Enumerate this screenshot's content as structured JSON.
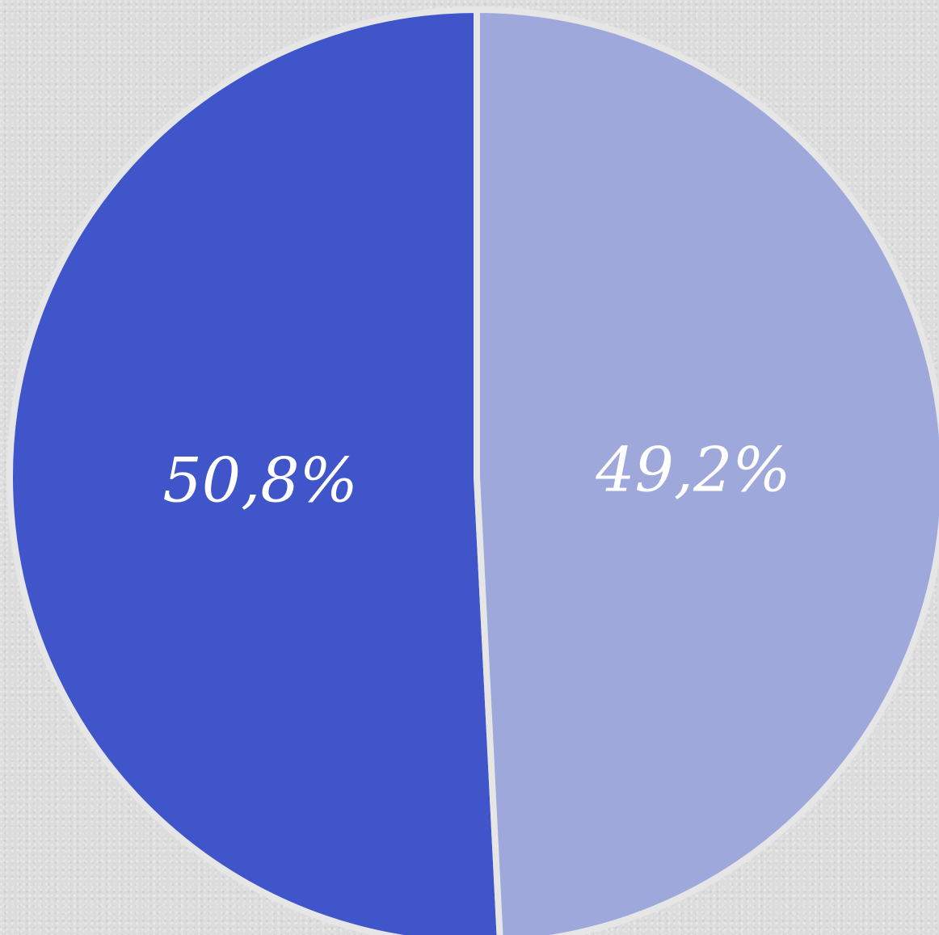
{
  "chart_data": {
    "type": "pie",
    "slices": [
      {
        "label": "50,8%",
        "value": 50.8,
        "color": "#4055c9"
      },
      {
        "label": "49,2%",
        "value": 49.2,
        "color": "#9ea8db"
      }
    ],
    "start_angle_deg": 0,
    "direction": "counterclockwise",
    "separator_color": "#e6e6e6"
  }
}
